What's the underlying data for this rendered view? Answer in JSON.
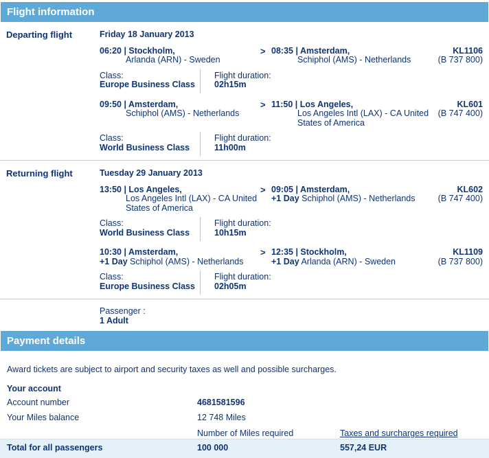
{
  "icons": {
    "chevron": ">"
  },
  "colors": {
    "section_bar": "#5fa9d9",
    "text_navy": "#0f3474",
    "total_row_bg": "#e4f1f9",
    "divider": "#bcd0e2"
  },
  "headers": {
    "flight_information": "Flight information",
    "payment_details": "Payment details"
  },
  "flights": {
    "departing": {
      "label": "Departing flight",
      "date": "Friday 18 January 2013",
      "segments": [
        {
          "dep_title": "06:20 | Stockholm,",
          "dep_detail": "Arlanda (ARN) - Sweden",
          "arr_title": "08:35 | Amsterdam,",
          "arr_detail": "Schiphol (AMS) - Netherlands",
          "flight_no": "KL1106",
          "aircraft": "(B 737 800)",
          "class_label": "Class:",
          "class_value": "Europe Business Class",
          "duration_label": "Flight duration:",
          "duration_value": "02h15m"
        },
        {
          "dep_title": "09:50 | Amsterdam,",
          "dep_detail": "Schiphol (AMS) - Netherlands",
          "arr_title": "11:50 | Los Angeles,",
          "arr_detail": "Los Angeles Intl (LAX) - CA United States of America",
          "flight_no": "KL601",
          "aircraft": "(B 747 400)",
          "class_label": "Class:",
          "class_value": "World Business Class",
          "duration_label": "Flight duration:",
          "duration_value": "11h00m"
        }
      ]
    },
    "returning": {
      "label": "Returning flight",
      "date": "Tuesday 29 January 2013",
      "segments": [
        {
          "dep_title": "13:50 | Los Angeles,",
          "dep_detail": "Los Angeles Intl (LAX) - CA United States of America",
          "arr_title": "09:05 | Amsterdam,",
          "arr_plus": "+1 Day",
          "arr_detail": "Schiphol (AMS) - Netherlands",
          "flight_no": "KL602",
          "aircraft": "(B 747 400)",
          "class_label": "Class:",
          "class_value": "World Business Class",
          "duration_label": "Flight duration:",
          "duration_value": "10h15m"
        },
        {
          "dep_title": "10:30 | Amsterdam,",
          "dep_plus": "+1 Day",
          "dep_detail": "Schiphol (AMS) - Netherlands",
          "arr_title": "12:35 | Stockholm,",
          "arr_plus": "+1 Day",
          "arr_detail": "Arlanda (ARN) - Sweden",
          "flight_no": "KL1109",
          "aircraft": "(B 737 800)",
          "class_label": "Class:",
          "class_value": "Europe Business Class",
          "duration_label": "Flight duration:",
          "duration_value": "02h05m"
        }
      ]
    },
    "passenger_label": "Passenger :",
    "passenger_value": "1 Adult"
  },
  "payment": {
    "notice": "Award tickets are subject to airport and security taxes as well and possible surcharges.",
    "account_section": "Your account",
    "rows": [
      {
        "label": "Account number",
        "value": "4681581596"
      },
      {
        "label": "Your Miles balance",
        "value": "12 748 Miles"
      }
    ],
    "miles_header": "Number of Miles required",
    "taxes_header": "Taxes and surcharges required",
    "total_label": "Total for all passengers",
    "total_miles": "100 000",
    "total_taxes": "557,24 EUR"
  }
}
